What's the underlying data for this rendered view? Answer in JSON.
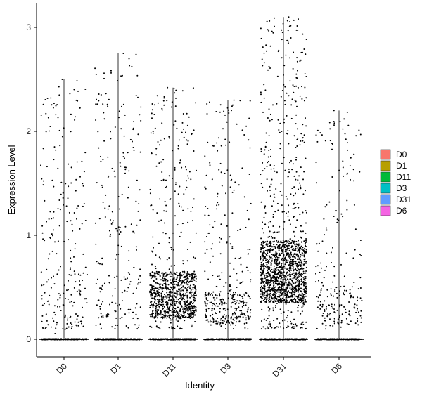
{
  "chart_data": {
    "type": "scatter",
    "subtype": "violin-jitter",
    "title": "",
    "xlabel": "Identity",
    "ylabel": "Expression Level",
    "ylim": [
      -0.18,
      3.12
    ],
    "yticks": [
      0,
      1,
      2,
      3
    ],
    "grid": false,
    "legend_position": "right",
    "categories": [
      "D0",
      "D1",
      "D11",
      "D3",
      "D31",
      "D6"
    ],
    "colors": [
      "#F8766D",
      "#B79F00",
      "#00BA38",
      "#00BFC4",
      "#619CFF",
      "#F564E3"
    ],
    "series": [
      {
        "name": "D0",
        "max": 2.5,
        "dense_low": 0.05,
        "dense_high": 0.7,
        "n_dense": 60,
        "n_sparse": 180
      },
      {
        "name": "D1",
        "max": 2.75,
        "dense_low": 0.2,
        "dense_high": 0.6,
        "n_dense": 40,
        "n_sparse": 190
      },
      {
        "name": "D11",
        "max": 2.42,
        "dense_low": 0.2,
        "dense_high": 0.65,
        "n_dense": 700,
        "n_sparse": 260
      },
      {
        "name": "D3",
        "max": 2.3,
        "dense_low": 0.15,
        "dense_high": 0.45,
        "n_dense": 180,
        "n_sparse": 200
      },
      {
        "name": "D31",
        "max": 3.1,
        "dense_low": 0.35,
        "dense_high": 0.95,
        "n_dense": 1100,
        "n_sparse": 480
      },
      {
        "name": "D6",
        "max": 2.2,
        "dense_low": 0.15,
        "dense_high": 0.55,
        "n_dense": 90,
        "n_sparse": 130
      }
    ]
  }
}
